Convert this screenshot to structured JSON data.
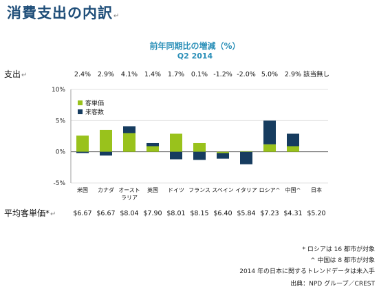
{
  "page": {
    "title": "消費支出の内訳",
    "paragraph_mark": "↵"
  },
  "chart_data": {
    "type": "bar",
    "stacked": true,
    "title": "前年同期比の増減（%）",
    "subtitle": "Q2 2014",
    "categories": [
      "米国",
      "カナダ",
      "オーストラリア",
      "英国",
      "ドイツ",
      "フランス",
      "スペイン",
      "イタリア",
      "ロシア^",
      "中国^",
      "日本"
    ],
    "series": [
      {
        "name": "客単価",
        "color": "#99c21c",
        "values": [
          2.6,
          3.5,
          3.0,
          0.9,
          2.9,
          1.4,
          -0.2,
          0.1,
          1.2,
          0.9,
          0
        ]
      },
      {
        "name": "来客数",
        "color": "#163c5f",
        "values": [
          -0.2,
          -0.6,
          1.1,
          0.5,
          -1.2,
          -1.3,
          -0.9,
          -2.0,
          3.8,
          2.0,
          0
        ]
      }
    ],
    "totals_label": "支出",
    "totals": [
      "2.4%",
      "2.9%",
      "4.1%",
      "1.4%",
      "1.7%",
      "0.1%",
      "-1.2%",
      "-2.0%",
      "5.0%",
      "2.9%",
      "該当無し"
    ],
    "avg_check_label": "平均客単価*",
    "avg_check": [
      "$6.67",
      "$6.67",
      "$8.04",
      "$7.90",
      "$8.01",
      "$8.15",
      "$6.40",
      "$5.84",
      "$7.23",
      "$4.31",
      "$5.20"
    ],
    "y_ticks": [
      "10%",
      "5%",
      "0%",
      "-5%"
    ],
    "ylim": [
      -5,
      10
    ],
    "legend_position": "top-left",
    "grid": true
  },
  "footnotes": {
    "russia": "* ロシアは 16 都市が対象",
    "china": "^ 中国は 8 都市が対象",
    "japan": "2014 年の日本に関するトレンドデータは未入手",
    "source": "出典：NPD グループ／CREST"
  }
}
